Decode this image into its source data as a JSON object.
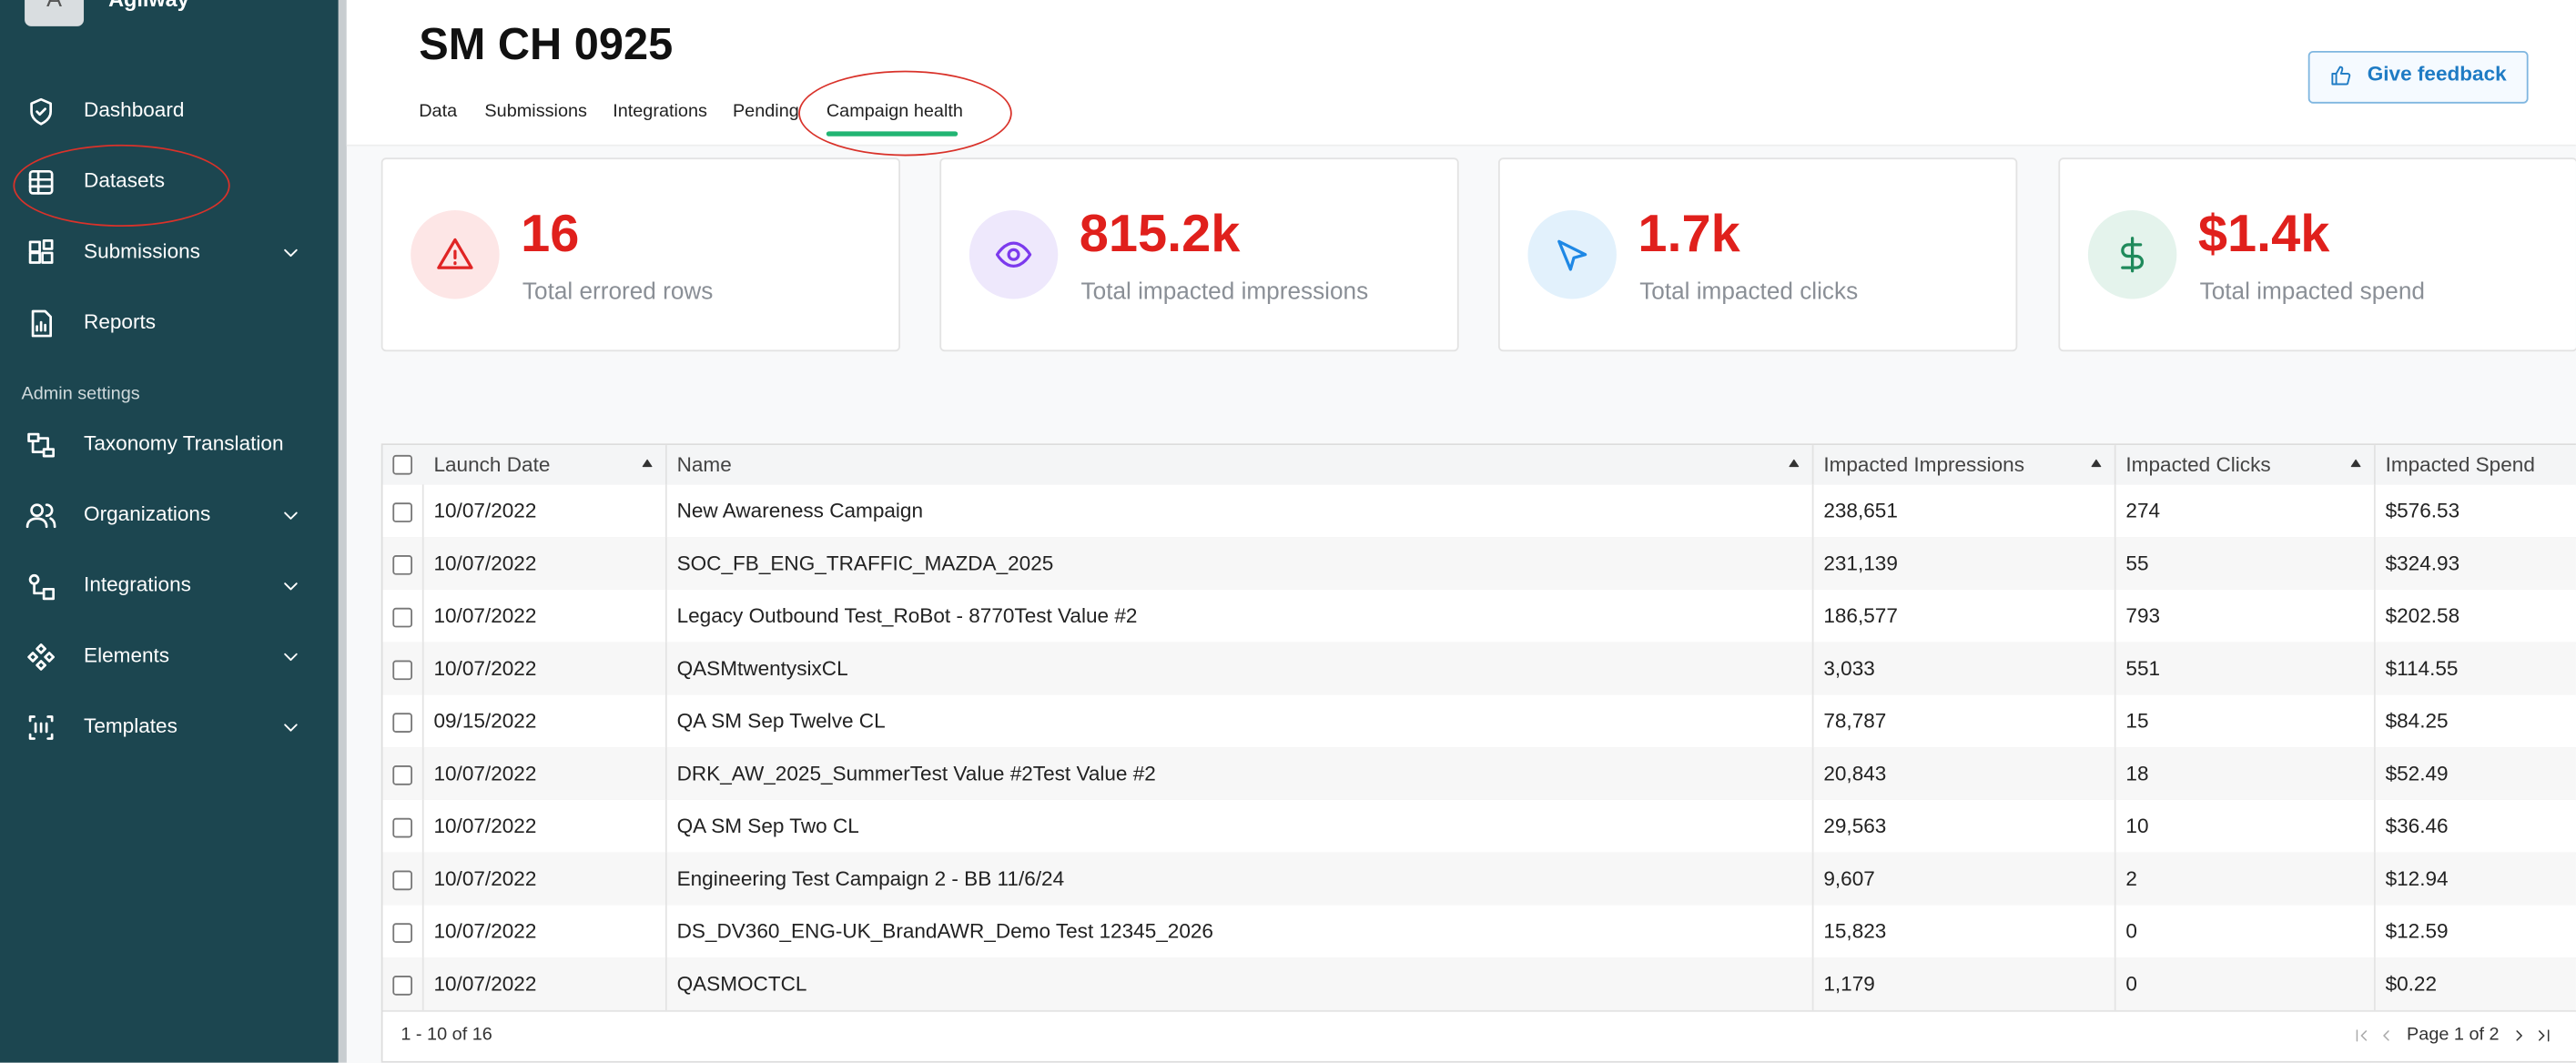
{
  "sidebar": {
    "avatar": "A",
    "brand": "Agilway",
    "items": [
      {
        "label": "Dashboard",
        "expandable": false
      },
      {
        "label": "Datasets",
        "expandable": false
      },
      {
        "label": "Submissions",
        "expandable": true
      },
      {
        "label": "Reports",
        "expandable": false
      }
    ],
    "section": "Admin settings",
    "admin_items": [
      {
        "label": "Taxonomy Translation",
        "expandable": false
      },
      {
        "label": "Organizations",
        "expandable": true
      },
      {
        "label": "Integrations",
        "expandable": true
      },
      {
        "label": "Elements",
        "expandable": true
      },
      {
        "label": "Templates",
        "expandable": true
      }
    ]
  },
  "header": {
    "title": "SM CH 0925",
    "tabs": [
      "Data",
      "Submissions",
      "Integrations",
      "Pending",
      "Campaign health"
    ],
    "active_tab": 4,
    "feedback": "Give feedback"
  },
  "cards": [
    {
      "value": "16",
      "label": "Total errored rows"
    },
    {
      "value": "815.2k",
      "label": "Total impacted impressions"
    },
    {
      "value": "1.7k",
      "label": "Total impacted clicks"
    },
    {
      "value": "$1.4k",
      "label": "Total impacted spend"
    }
  ],
  "table": {
    "columns": [
      "Launch Date",
      "Name",
      "Impacted Impressions",
      "Impacted Clicks",
      "Impacted Spend"
    ],
    "rows": [
      [
        "10/07/2022",
        "New Awareness Campaign",
        "238,651",
        "274",
        "$576.53"
      ],
      [
        "10/07/2022",
        "SOC_FB_ENG_TRAFFIC_MAZDA_2025",
        "231,139",
        "55",
        "$324.93"
      ],
      [
        "10/07/2022",
        "Legacy Outbound Test_RoBot - 8770Test Value #2",
        "186,577",
        "793",
        "$202.58"
      ],
      [
        "10/07/2022",
        "QASMtwentysixCL",
        "3,033",
        "551",
        "$114.55"
      ],
      [
        "09/15/2022",
        "QA SM Sep Twelve CL",
        "78,787",
        "15",
        "$84.25"
      ],
      [
        "10/07/2022",
        "DRK_AW_2025_SummerTest Value #2Test Value #2",
        "20,843",
        "18",
        "$52.49"
      ],
      [
        "10/07/2022",
        "QA SM Sep Two CL",
        "29,563",
        "10",
        "$36.46"
      ],
      [
        "10/07/2022",
        "Engineering Test Campaign 2 - BB 11/6/24",
        "9,607",
        "2",
        "$12.94"
      ],
      [
        "10/07/2022",
        "DS_DV360_ENG-UK_BrandAWR_Demo Test 12345_2026",
        "15,823",
        "0",
        "$12.59"
      ],
      [
        "10/07/2022",
        "QASMOCTCL",
        "1,179",
        "0",
        "$0.22"
      ]
    ]
  },
  "footer": {
    "range": "1 - 10 of 16",
    "page": "Page 1 of 2"
  }
}
